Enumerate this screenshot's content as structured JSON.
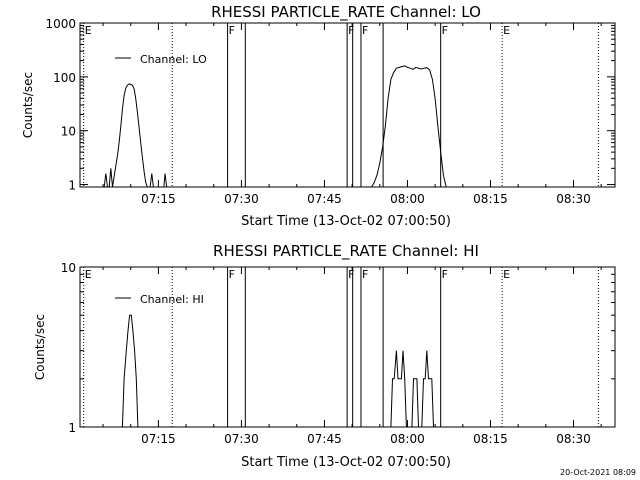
{
  "footer_timestamp": "20-Oct-2021 08:09",
  "chart_data": [
    {
      "type": "line",
      "title": "RHESSI PARTICLE_RATE Channel: LO",
      "xlabel": "Start Time (13-Oct-02 07:00:50)",
      "ylabel": "Counts/sec",
      "y_scale": "log",
      "ylim": [
        0.9,
        1000
      ],
      "xlim_minutes_after_0700": [
        0.833,
        43.833
      ],
      "x_ticks": [
        {
          "label": "07:15",
          "minute": 15
        },
        {
          "label": "07:30",
          "minute": 30
        },
        {
          "label": "07:45",
          "minute": 45
        },
        {
          "label": "08:00",
          "minute": 60
        },
        {
          "label": "08:15",
          "minute": 75
        },
        {
          "label": "08:30",
          "minute": 90
        }
      ],
      "y_ticks": [
        {
          "label": "1",
          "value": 1
        },
        {
          "label": "10",
          "value": 10
        },
        {
          "label": "100",
          "value": 100
        },
        {
          "label": "1000",
          "value": 1000
        }
      ],
      "legend": {
        "label": "Channel: LO",
        "position": "top-left"
      },
      "event_markers": [
        {
          "label": "E",
          "minute": 1.5,
          "style": "dotted"
        },
        {
          "label": "",
          "minute": 17.5,
          "style": "dotted"
        },
        {
          "label": "F",
          "minute": 27.5,
          "style": "solid"
        },
        {
          "label": "",
          "minute": 30.7,
          "style": "solid"
        },
        {
          "label": "F",
          "minute": 49.1,
          "style": "solid"
        },
        {
          "label": "",
          "minute": 50.1,
          "style": "solid"
        },
        {
          "label": "F",
          "minute": 51.6,
          "style": "solid"
        },
        {
          "label": "",
          "minute": 55.6,
          "style": "solid"
        },
        {
          "label": "F",
          "minute": 66,
          "style": "solid"
        },
        {
          "label": "E",
          "minute": 77.1,
          "style": "dotted"
        },
        {
          "label": "",
          "minute": 94.5,
          "style": "dotted"
        }
      ],
      "series": [
        {
          "x": [
            5.2,
            5.5,
            5.8,
            6.1,
            6.4,
            6.7,
            7.0,
            7.3,
            7.6,
            7.9,
            8.2,
            8.5,
            8.8,
            9.1,
            9.4,
            9.7,
            10.0,
            10.3,
            10.6,
            10.9,
            11.2,
            11.5,
            11.8,
            12.1,
            12.4,
            12.7,
            13.0,
            13.5,
            13.8,
            14.1,
            14.4,
            14.7,
            15.0,
            15.5,
            16.0,
            16.2,
            16.5
          ],
          "y": [
            0.9,
            1.6,
            0.9,
            0.9,
            2.0,
            0.9,
            1.4,
            2.2,
            3.5,
            6.0,
            12,
            25,
            45,
            62,
            70,
            74,
            72,
            70,
            60,
            40,
            22,
            12,
            6,
            3.2,
            1.8,
            1.1,
            0.9,
            0.9,
            1.6,
            0.9,
            0.9,
            0.9,
            0.9,
            0.9,
            0.9,
            1.6,
            0.9
          ]
        },
        {
          "x": [
            53.5,
            54.0,
            54.5,
            55.0,
            55.5,
            56.0,
            56.5,
            57.0,
            57.5,
            58.0,
            58.5,
            59.0,
            59.5,
            60.0,
            60.5,
            61.0,
            61.5,
            62.0,
            62.5,
            63.0,
            63.5,
            64.0,
            64.5,
            65.0,
            65.5,
            66.0,
            66.5,
            67.0
          ],
          "y": [
            0.9,
            1.1,
            1.5,
            2.5,
            5,
            12,
            40,
            90,
            120,
            145,
            150,
            155,
            160,
            150,
            145,
            138,
            150,
            145,
            140,
            145,
            148,
            135,
            90,
            40,
            12,
            4,
            1.5,
            0.9
          ]
        }
      ]
    },
    {
      "type": "line",
      "title": "RHESSI PARTICLE_RATE Channel: HI",
      "xlabel": "Start Time (13-Oct-02 07:00:50)",
      "ylabel": "Counts/sec",
      "y_scale": "log",
      "ylim": [
        1,
        10
      ],
      "xlim_minutes_after_0700": [
        0.833,
        43.833
      ],
      "x_ticks": [
        {
          "label": "07:15",
          "minute": 15
        },
        {
          "label": "07:30",
          "minute": 30
        },
        {
          "label": "07:45",
          "minute": 45
        },
        {
          "label": "08:00",
          "minute": 60
        },
        {
          "label": "08:15",
          "minute": 75
        },
        {
          "label": "08:30",
          "minute": 90
        }
      ],
      "y_ticks": [
        {
          "label": "1",
          "value": 1
        },
        {
          "label": "10",
          "value": 10
        }
      ],
      "legend": {
        "label": "Channel: HI",
        "position": "top-left"
      },
      "event_markers": [
        {
          "label": "E",
          "minute": 1.5,
          "style": "dotted"
        },
        {
          "label": "",
          "minute": 17.5,
          "style": "dotted"
        },
        {
          "label": "F",
          "minute": 27.5,
          "style": "solid"
        },
        {
          "label": "",
          "minute": 30.7,
          "style": "solid"
        },
        {
          "label": "F",
          "minute": 49.1,
          "style": "solid"
        },
        {
          "label": "",
          "minute": 50.1,
          "style": "solid"
        },
        {
          "label": "F",
          "minute": 51.6,
          "style": "solid"
        },
        {
          "label": "",
          "minute": 55.6,
          "style": "solid"
        },
        {
          "label": "F",
          "minute": 66,
          "style": "solid"
        },
        {
          "label": "E",
          "minute": 77.1,
          "style": "dotted"
        },
        {
          "label": "",
          "minute": 94.5,
          "style": "dotted"
        }
      ],
      "series": [
        {
          "x": [
            8.0,
            8.5,
            8.8,
            9.2,
            9.5,
            9.8,
            10.1,
            10.4,
            10.7,
            11.0,
            11.3,
            11.6,
            12.0,
            12.5
          ],
          "y": [
            1,
            1,
            2,
            3,
            4,
            5,
            5,
            4,
            3,
            2,
            1,
            1,
            1,
            1
          ]
        },
        {
          "x": [
            56.5,
            57.0,
            57.3,
            57.6,
            58.0,
            58.3,
            58.6,
            58.9,
            59.2,
            59.5,
            59.8,
            60.1,
            60.5,
            60.8,
            61.1,
            61.4,
            61.7,
            62.0,
            62.3,
            62.6,
            62.9,
            63.2,
            63.5,
            63.8,
            64.1,
            64.4,
            64.7,
            65.0,
            65.3,
            65.6
          ],
          "y": [
            1,
            1,
            2,
            2,
            3,
            2,
            2,
            2,
            3,
            2,
            1,
            1,
            1,
            1,
            2,
            2,
            2,
            1,
            1,
            1,
            2,
            2,
            3,
            2,
            2,
            2,
            1,
            1,
            1,
            1
          ]
        }
      ]
    }
  ]
}
